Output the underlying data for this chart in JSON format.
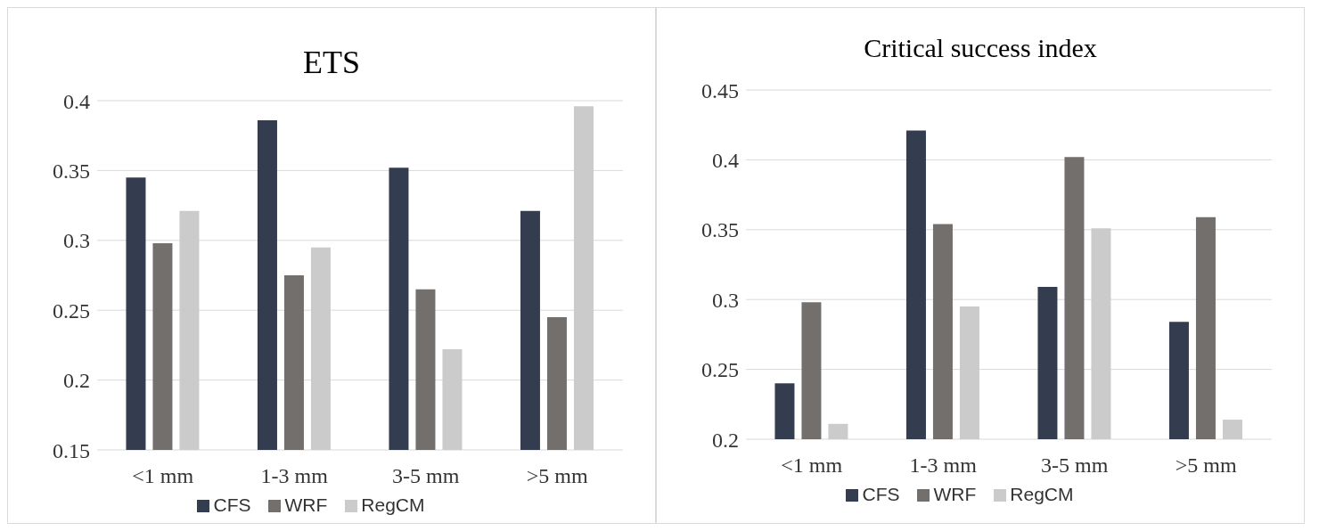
{
  "chart_data": [
    {
      "type": "bar",
      "title": "ETS",
      "categories": [
        "<1 mm",
        "1-3 mm",
        "3-5 mm",
        ">5 mm"
      ],
      "series": [
        {
          "name": "CFS",
          "color": "#333d4f",
          "values": [
            0.345,
            0.386,
            0.352,
            0.321
          ]
        },
        {
          "name": "WRF",
          "color": "#736f6d",
          "values": [
            0.298,
            0.275,
            0.265,
            0.245
          ]
        },
        {
          "name": "RegCM",
          "color": "#cbcbcb",
          "values": [
            0.321,
            0.295,
            0.222,
            0.396
          ]
        }
      ],
      "ylim": [
        0.15,
        0.4
      ],
      "yticks": [
        0.15,
        0.2,
        0.25,
        0.3,
        0.35,
        0.4
      ],
      "grid": "y",
      "legend": "bottom"
    },
    {
      "type": "bar",
      "title": "Critical success index",
      "categories": [
        "<1 mm",
        "1-3 mm",
        "3-5 mm",
        ">5 mm"
      ],
      "series": [
        {
          "name": "CFS",
          "color": "#333d4f",
          "values": [
            0.24,
            0.421,
            0.309,
            0.284
          ]
        },
        {
          "name": "WRF",
          "color": "#736f6d",
          "values": [
            0.298,
            0.354,
            0.402,
            0.359
          ]
        },
        {
          "name": "RegCM",
          "color": "#cbcbcb",
          "values": [
            0.211,
            0.295,
            0.351,
            0.214
          ]
        }
      ],
      "ylim": [
        0.2,
        0.45
      ],
      "yticks": [
        0.2,
        0.25,
        0.3,
        0.35,
        0.4,
        0.45
      ],
      "grid": "y",
      "legend": "bottom"
    }
  ]
}
